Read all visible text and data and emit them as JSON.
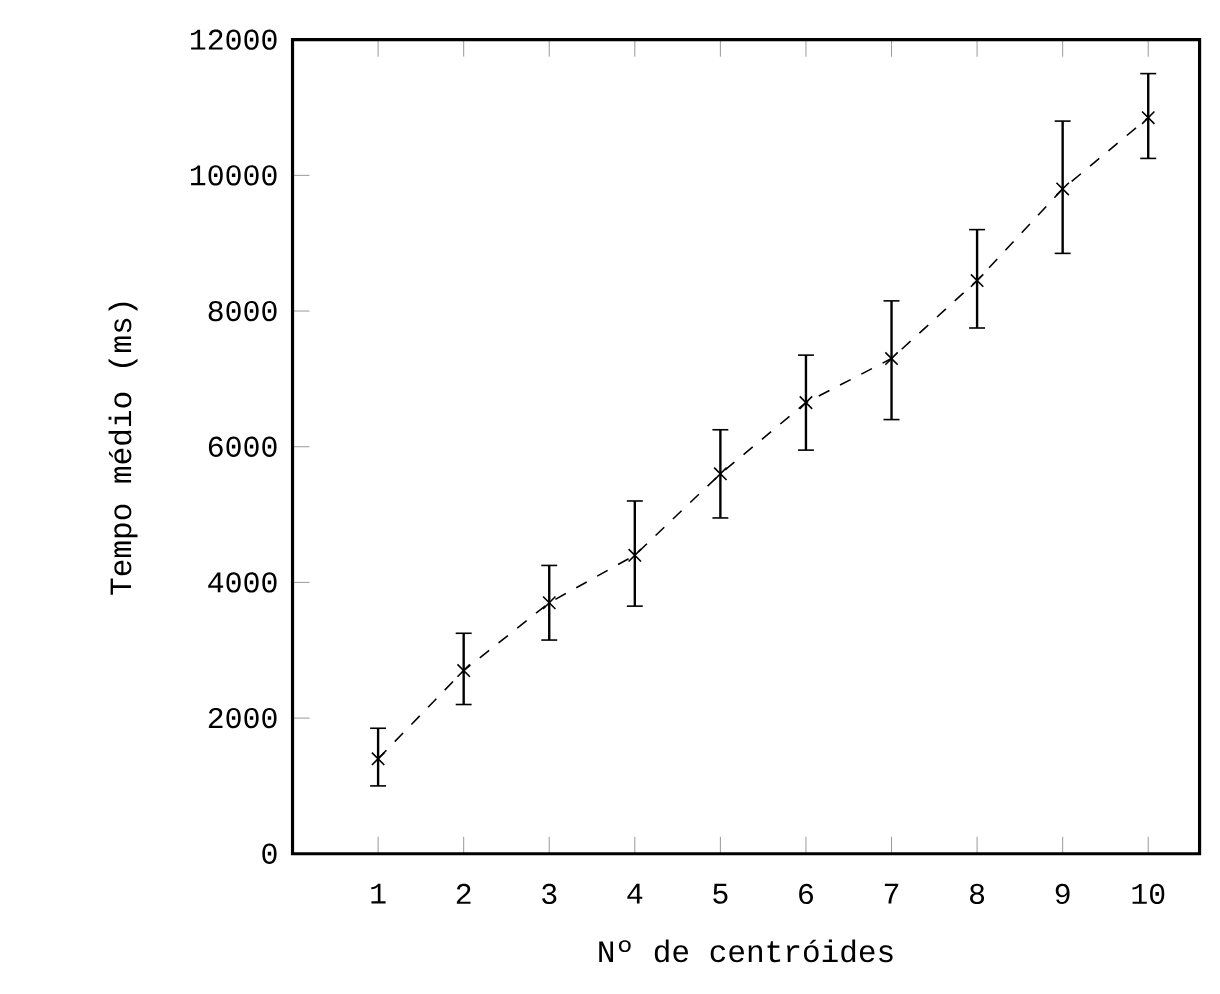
{
  "chart_data": {
    "type": "line",
    "xlabel": "Nº de centróides",
    "ylabel": "Tempo médio (ms)",
    "x": [
      1,
      2,
      3,
      4,
      5,
      6,
      7,
      8,
      9,
      10
    ],
    "series": [
      {
        "color": "#000000",
        "values": [
          1400,
          2700,
          3700,
          4400,
          5600,
          6650,
          7300,
          8450,
          9800,
          10850
        ],
        "errors": [
          [
            1000,
            1850
          ],
          [
            2200,
            3250
          ],
          [
            3150,
            4250
          ],
          [
            3650,
            5200
          ],
          [
            4950,
            6250
          ],
          [
            5950,
            7350
          ],
          [
            6400,
            8150
          ],
          [
            7750,
            9200
          ],
          [
            8850,
            10800
          ],
          [
            10250,
            11500
          ]
        ]
      }
    ],
    "xlim": [
      0,
      10.6
    ],
    "xticks": [
      1,
      2,
      3,
      4,
      5,
      6,
      7,
      8,
      9,
      10
    ],
    "ylim": [
      0,
      12000
    ],
    "yticks": [
      0,
      2000,
      4000,
      6000,
      8000,
      10000,
      12000
    ],
    "marker": "cross",
    "line_style": "dashed",
    "grid": false
  }
}
